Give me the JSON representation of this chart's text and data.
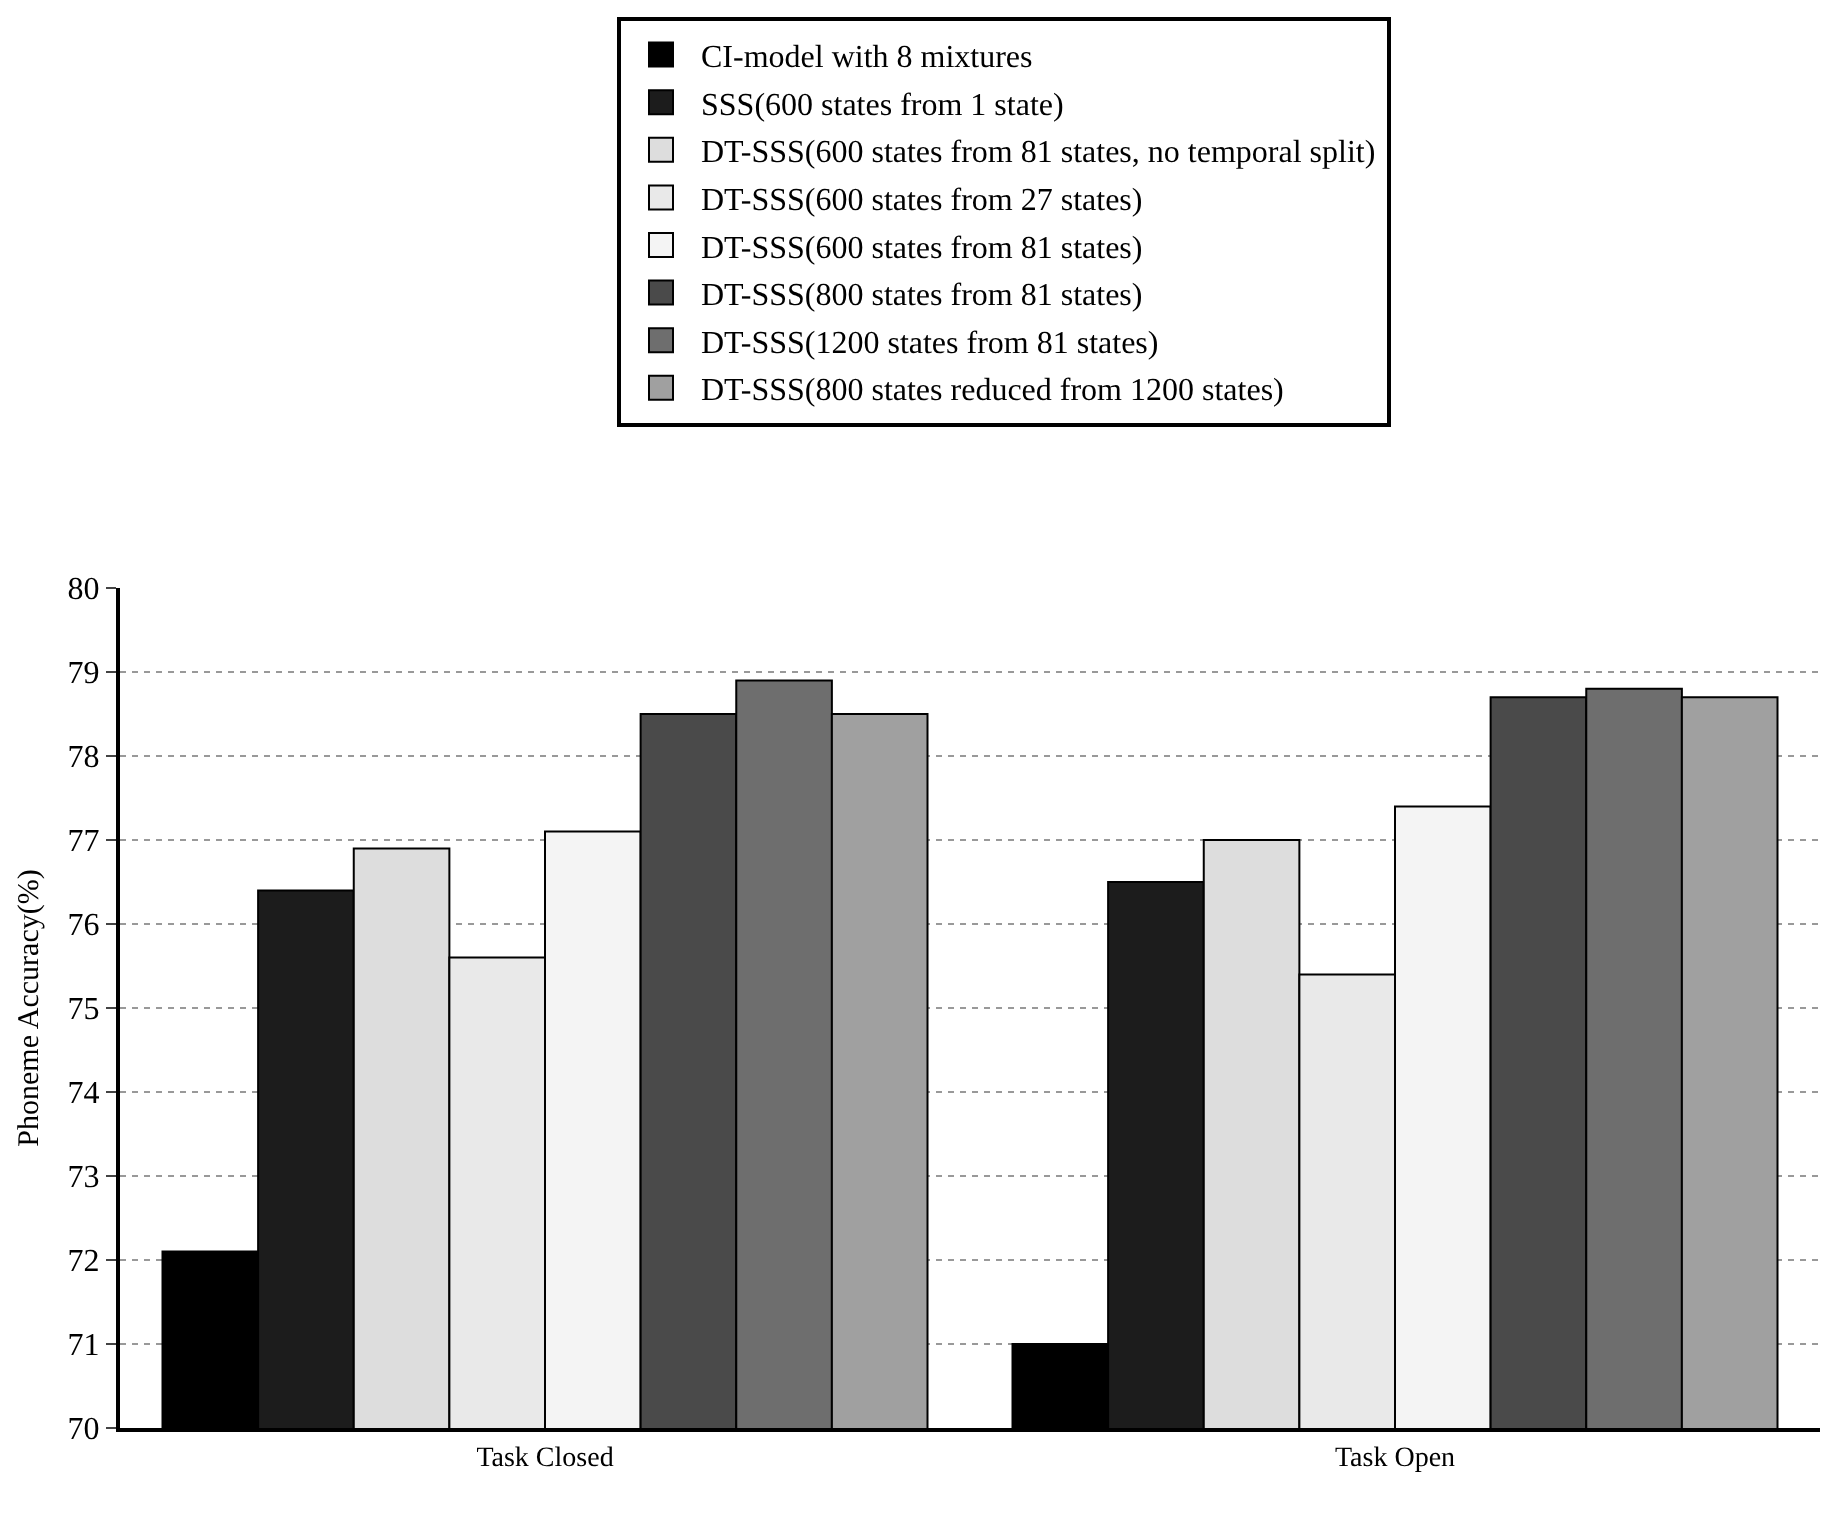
{
  "chart_data": {
    "type": "bar",
    "ylabel": "Phoneme Accuracy(%)",
    "categories": [
      "Task Closed",
      "Task Open"
    ],
    "series": [
      {
        "name": "CI-model with 8 mixtures",
        "color": "#000000",
        "values": [
          72.1,
          71.0
        ]
      },
      {
        "name": "SSS(600 states from 1 state)",
        "color": "#1c1c1c",
        "values": [
          76.4,
          76.5
        ]
      },
      {
        "name": "DT-SSS(600 states from 81 states, no temporal split)",
        "color": "#dddddd",
        "values": [
          76.9,
          77.0
        ]
      },
      {
        "name": "DT-SSS(600 states from 27 states)",
        "color": "#e9e9e9",
        "values": [
          75.6,
          75.4
        ]
      },
      {
        "name": "DT-SSS(600 states from 81 states)",
        "color": "#f4f4f4",
        "values": [
          77.1,
          77.4
        ]
      },
      {
        "name": "DT-SSS(800 states from 81 states)",
        "color": "#4a4a4a",
        "values": [
          78.5,
          78.7
        ]
      },
      {
        "name": "DT-SSS(1200 states from 81 states)",
        "color": "#6e6e6e",
        "values": [
          78.9,
          78.8
        ]
      },
      {
        "name": "DT-SSS(800 states reduced from 1200 states)",
        "color": "#a0a0a0",
        "values": [
          78.5,
          78.7
        ]
      }
    ],
    "ylim": [
      70,
      80
    ],
    "yticks": [
      70,
      71,
      72,
      73,
      74,
      75,
      76,
      77,
      78,
      79,
      80
    ],
    "grid": "y",
    "legend": "top"
  }
}
